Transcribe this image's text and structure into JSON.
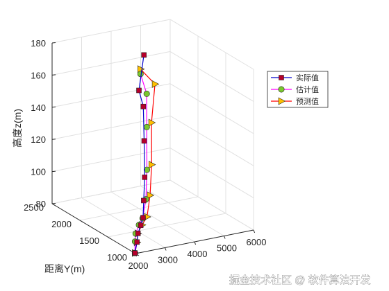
{
  "chart_data": {
    "type": "line3d",
    "xlabel": "",
    "ylabel": "距离Y(m)",
    "zlabel": "高度z(m)",
    "xlim": [
      2000,
      6000
    ],
    "ylim": [
      1000,
      2500
    ],
    "zlim": [
      80,
      180
    ],
    "xticks": [
      "2000",
      "3000",
      "4000",
      "5000",
      "6000"
    ],
    "yticks": [
      "1000",
      "1500",
      "2000",
      "2500"
    ],
    "zticks": [
      "80",
      "100",
      "120",
      "140",
      "160",
      "180"
    ],
    "grid": true,
    "legend_position": "upper-right",
    "series": [
      {
        "name": "实际值",
        "color": "#0000cc",
        "marker": "square",
        "marker_fill": "#b5002b",
        "points": [
          [
            2012,
            1015,
            80.0
          ],
          [
            2255,
            1108,
            84.0
          ],
          [
            2485,
            1212,
            86.4
          ],
          [
            2800,
            1330,
            87.8
          ],
          [
            3105,
            1450,
            89.0
          ],
          [
            3315,
            1550,
            96.8
          ],
          [
            3535,
            1650,
            108.4
          ],
          [
            3715,
            1755,
            128.2
          ],
          [
            3885,
            1860,
            146.8
          ],
          [
            3925,
            1960,
            154.6
          ],
          [
            4300,
            2070,
            173.0
          ]
        ]
      },
      {
        "name": "估计值",
        "color": "#ff00ff",
        "marker": "circle",
        "marker_fill": "#7ac72e",
        "points": [
          [
            2012,
            1015,
            80.0
          ],
          [
            2175,
            1100,
            84.8
          ],
          [
            2365,
            1190,
            87.2
          ],
          [
            2665,
            1290,
            89.4
          ],
          [
            2995,
            1400,
            90.0
          ],
          [
            3315,
            1510,
            98.4
          ],
          [
            3555,
            1620,
            113.6
          ],
          [
            3795,
            1750,
            136.6
          ],
          [
            4075,
            1900,
            153.2
          ],
          [
            4035,
            1990,
            163.8
          ]
        ]
      },
      {
        "name": "预测值",
        "color": "#ff0000",
        "marker": "triangle-right",
        "marker_fill": "#ffc000",
        "points": [
          [
            2012,
            1015,
            80.0
          ],
          [
            2240,
            1100,
            84.0
          ],
          [
            2435,
            1190,
            87.0
          ],
          [
            2770,
            1290,
            89.0
          ],
          [
            3145,
            1400,
            90.4
          ],
          [
            3455,
            1510,
            100.4
          ],
          [
            3715,
            1620,
            116.2
          ],
          [
            3955,
            1750,
            138.8
          ],
          [
            4355,
            1900,
            158.2
          ],
          [
            4035,
            1990,
            166.8
          ]
        ]
      }
    ]
  },
  "watermark": "掘金技术社区 @ 软件算法开发"
}
